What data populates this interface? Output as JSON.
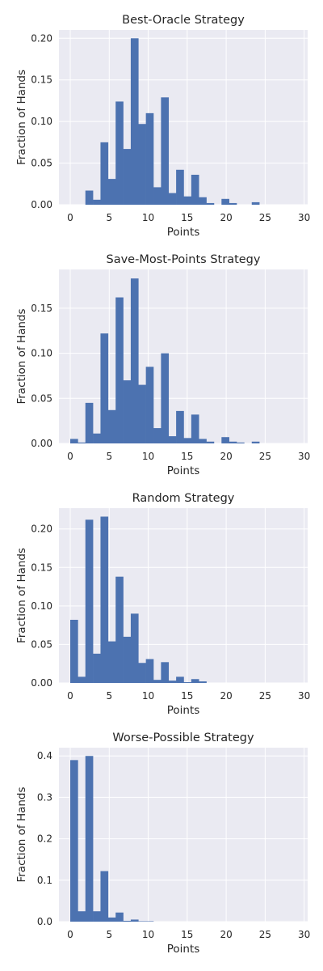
{
  "chart_data": [
    {
      "type": "bar",
      "title": "Best-Oracle Strategy",
      "xlabel": "Points",
      "ylabel": "Fraction of Hands",
      "xlim": [
        -1.45,
        30.45
      ],
      "ylim": [
        0,
        0.21
      ],
      "xticks": [
        0,
        5,
        10,
        15,
        20,
        25,
        30
      ],
      "yticks": [
        0.0,
        0.05,
        0.1,
        0.15,
        0.2
      ],
      "yticklabels": [
        "0.00",
        "0.05",
        "0.10",
        "0.15",
        "0.20"
      ],
      "grid": true,
      "bin_start": 0,
      "bin_width": 0.97,
      "values": [
        0,
        0,
        0.017,
        0.006,
        0.075,
        0.031,
        0.124,
        0.067,
        0.2,
        0.097,
        0.11,
        0.021,
        0.129,
        0.014,
        0.042,
        0.01,
        0.036,
        0.009,
        0.002,
        0,
        0.007,
        0.002,
        0,
        0,
        0.003,
        0,
        0,
        0,
        0,
        0
      ]
    },
    {
      "type": "bar",
      "title": "Save-Most-Points Strategy",
      "xlabel": "Points",
      "ylabel": "Fraction of Hands",
      "xlim": [
        -1.45,
        30.45
      ],
      "ylim": [
        0,
        0.193
      ],
      "xticks": [
        0,
        5,
        10,
        15,
        20,
        25,
        30
      ],
      "yticks": [
        0.0,
        0.05,
        0.1,
        0.15
      ],
      "yticklabels": [
        "0.00",
        "0.05",
        "0.10",
        "0.15"
      ],
      "grid": true,
      "bin_start": 0,
      "bin_width": 0.97,
      "values": [
        0.005,
        0.001,
        0.045,
        0.011,
        0.122,
        0.037,
        0.162,
        0.07,
        0.183,
        0.065,
        0.085,
        0.017,
        0.1,
        0.008,
        0.036,
        0.006,
        0.032,
        0.005,
        0.002,
        0,
        0.007,
        0.002,
        0.001,
        0,
        0.002,
        0,
        0,
        0,
        0,
        0
      ]
    },
    {
      "type": "bar",
      "title": "Random Strategy",
      "xlabel": "Points",
      "ylabel": "Fraction of Hands",
      "xlim": [
        -1.45,
        30.45
      ],
      "ylim": [
        0,
        0.227
      ],
      "xticks": [
        0,
        5,
        10,
        15,
        20,
        25,
        30
      ],
      "yticks": [
        0.0,
        0.05,
        0.1,
        0.15,
        0.2
      ],
      "yticklabels": [
        "0.00",
        "0.05",
        "0.10",
        "0.15",
        "0.20"
      ],
      "grid": true,
      "bin_start": 0,
      "bin_width": 0.97,
      "values": [
        0.082,
        0.008,
        0.212,
        0.038,
        0.216,
        0.054,
        0.138,
        0.06,
        0.09,
        0.026,
        0.031,
        0.004,
        0.027,
        0.003,
        0.008,
        0.001,
        0.005,
        0.002,
        0,
        0,
        0,
        0,
        0,
        0,
        0,
        0,
        0,
        0,
        0,
        0
      ]
    },
    {
      "type": "bar",
      "title": "Worse-Possible Strategy",
      "xlabel": "Points",
      "ylabel": "Fraction of Hands",
      "xlim": [
        -1.45,
        30.45
      ],
      "ylim": [
        0,
        0.42
      ],
      "xticks": [
        0,
        5,
        10,
        15,
        20,
        25,
        30
      ],
      "yticks": [
        0.0,
        0.1,
        0.2,
        0.3,
        0.4
      ],
      "yticklabels": [
        "0.0",
        "0.1",
        "0.2",
        "0.3",
        "0.4"
      ],
      "grid": true,
      "bin_start": 0,
      "bin_width": 0.97,
      "values": [
        0.39,
        0.025,
        0.4,
        0.025,
        0.122,
        0.01,
        0.022,
        0.002,
        0.005,
        0.001,
        0.001,
        0,
        0,
        0,
        0,
        0,
        0,
        0,
        0,
        0,
        0,
        0,
        0,
        0,
        0,
        0,
        0,
        0,
        0,
        0
      ]
    }
  ]
}
